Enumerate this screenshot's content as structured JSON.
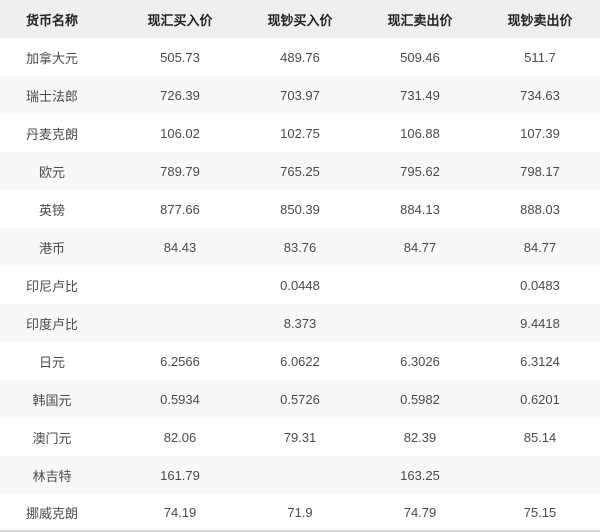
{
  "chart_data": {
    "type": "table",
    "columns": [
      "货币名称",
      "现汇买入价",
      "现钞买入价",
      "现汇卖出价",
      "现钞卖出价"
    ],
    "rows": [
      {
        "name": "加拿大元",
        "values": [
          "505.73",
          "489.76",
          "509.46",
          "511.7"
        ]
      },
      {
        "name": "瑞士法郎",
        "values": [
          "726.39",
          "703.97",
          "731.49",
          "734.63"
        ]
      },
      {
        "name": "丹麦克朗",
        "values": [
          "106.02",
          "102.75",
          "106.88",
          "107.39"
        ]
      },
      {
        "name": "欧元",
        "values": [
          "789.79",
          "765.25",
          "795.62",
          "798.17"
        ]
      },
      {
        "name": "英镑",
        "values": [
          "877.66",
          "850.39",
          "884.13",
          "888.03"
        ]
      },
      {
        "name": "港币",
        "values": [
          "84.43",
          "83.76",
          "84.77",
          "84.77"
        ]
      },
      {
        "name": "印尼卢比",
        "values": [
          "",
          "0.0448",
          "",
          "0.0483"
        ]
      },
      {
        "name": "印度卢比",
        "values": [
          "",
          "8.373",
          "",
          "9.4418"
        ]
      },
      {
        "name": "日元",
        "values": [
          "6.2566",
          "6.0622",
          "6.3026",
          "6.3124"
        ]
      },
      {
        "name": "韩国元",
        "values": [
          "0.5934",
          "0.5726",
          "0.5982",
          "0.6201"
        ]
      },
      {
        "name": "澳门元",
        "values": [
          "82.06",
          "79.31",
          "82.39",
          "85.14"
        ]
      },
      {
        "name": "林吉特",
        "values": [
          "161.79",
          "",
          "163.25",
          ""
        ]
      },
      {
        "name": "挪威克朗",
        "values": [
          "74.19",
          "71.9",
          "74.79",
          "75.15"
        ]
      }
    ],
    "layout": {
      "zebra_striping": true,
      "header_row": true,
      "cell_alignment": "center"
    }
  },
  "colors": {
    "header_bg": "#efefef",
    "header_text": "#222222",
    "body_text": "#4a4a4a",
    "stripe_bg": "#f8f8f8",
    "bottom_border": "#d9d9d9"
  }
}
